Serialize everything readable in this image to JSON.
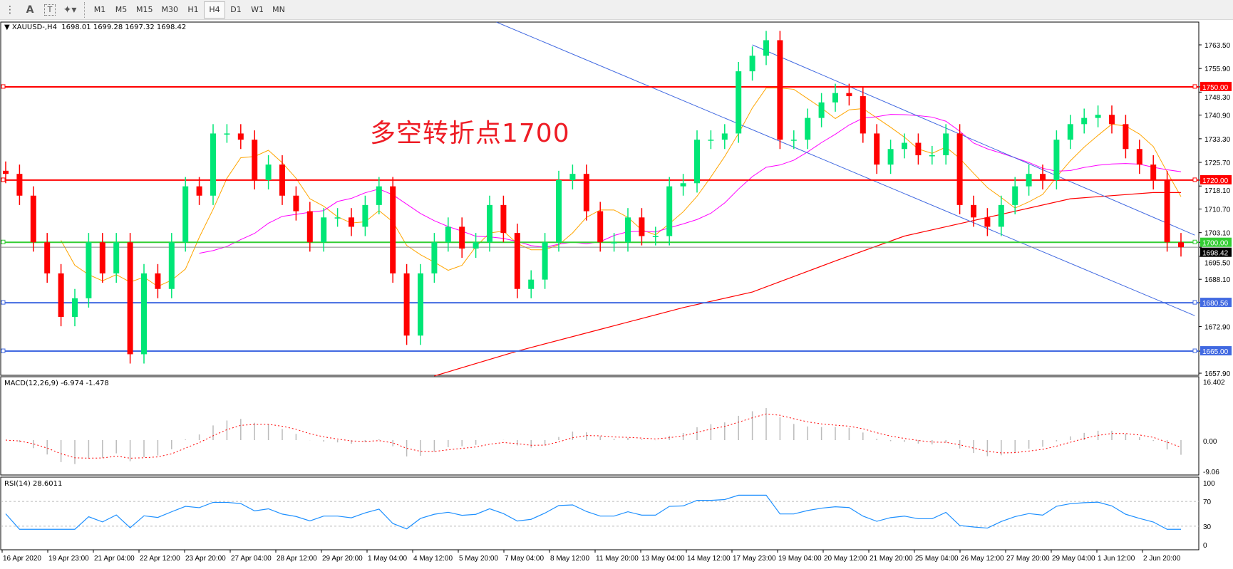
{
  "toolbar": {
    "icons": [
      "grid-f-icon",
      "text-a-icon",
      "text-label-icon",
      "shapes-icon"
    ],
    "timeframes": [
      "M1",
      "M5",
      "M15",
      "M30",
      "H1",
      "H4",
      "D1",
      "W1",
      "MN"
    ],
    "active": "H4"
  },
  "legend": {
    "symbol": "XAUUSD-,H4",
    "ohlc": "1698.01 1699.28 1697.32 1698.42"
  },
  "annotation": "多空转折点1700",
  "chart_data": {
    "type": "candlestick",
    "closes": [
      1722,
      1715,
      1700,
      1690,
      1676,
      1682,
      1700,
      1690,
      1700,
      1664,
      1690,
      1685,
      1700,
      1718,
      1715,
      1735,
      1735,
      1733,
      1720,
      1725,
      1715,
      1710,
      1700,
      1708,
      1708,
      1705,
      1712,
      1718,
      1690,
      1670,
      1690,
      1700,
      1705,
      1698,
      1700,
      1712,
      1703,
      1685,
      1688,
      1700,
      1720,
      1722,
      1710,
      1700,
      1700,
      1708,
      1702,
      1702,
      1718,
      1719,
      1733,
      1733,
      1735,
      1755,
      1760,
      1765,
      1733,
      1733,
      1740,
      1745,
      1748,
      1747,
      1735,
      1725,
      1730,
      1732,
      1728,
      1728,
      1735,
      1712,
      1708,
      1705,
      1712,
      1718,
      1722,
      1720,
      1733,
      1738,
      1740,
      1741,
      1738,
      1730,
      1725,
      1720,
      1700,
      1698.42
    ],
    "ylim": [
      1655,
      1770
    ],
    "price_ticks": [
      "1763.50",
      "1755.90",
      "1748.30",
      "1740.90",
      "1733.30",
      "1725.70",
      "1718.10",
      "1710.70",
      "1703.10",
      "1695.50",
      "1688.10",
      "1672.90",
      "1657.90"
    ],
    "current_price": "1698.42",
    "levels": [
      {
        "price": 1750,
        "label": "1750.00",
        "color": "#ff0000"
      },
      {
        "price": 1720,
        "label": "1720.00",
        "color": "#ff0000"
      },
      {
        "price": 1700,
        "label": "1700.00",
        "color": "#32cd32"
      },
      {
        "price": 1680.56,
        "label": "1680.56",
        "color": "#4169e1"
      },
      {
        "price": 1665,
        "label": "1665.00",
        "color": "#4169e1"
      }
    ],
    "trendlines": [
      {
        "points": [
          [
            35.5,
            1770.8
          ],
          [
            86,
            1676.4
          ]
        ],
        "color": "#4169e1"
      },
      {
        "points": [
          [
            54,
            1763.5
          ],
          [
            86,
            1702.3
          ]
        ],
        "color": "#4169e1"
      }
    ],
    "ma_slow": [
      [
        31,
        1657
      ],
      [
        37,
        1665
      ],
      [
        43,
        1672
      ],
      [
        49,
        1679
      ],
      [
        54,
        1684
      ],
      [
        60,
        1694
      ],
      [
        65,
        1702
      ],
      [
        71,
        1708
      ],
      [
        77,
        1714
      ],
      [
        83,
        1716
      ],
      [
        85,
        1716
      ]
    ],
    "colors": {
      "bull": "#00e676",
      "bear": "#ff0000",
      "ma_fast": "#ffa500",
      "ma_mid": "#ff00ff",
      "ma_slow": "#ff0000"
    },
    "x_labels": [
      "16 Apr 2020",
      "19 Apr 23:00",
      "21 Apr 04:00",
      "22 Apr 12:00",
      "23 Apr 20:00",
      "27 Apr 04:00",
      "28 Apr 12:00",
      "29 Apr 20:00",
      "1 May 04:00",
      "4 May 12:00",
      "5 May 20:00",
      "7 May 04:00",
      "8 May 12:00",
      "11 May 20:00",
      "13 May 04:00",
      "14 May 12:00",
      "17 May 23:00",
      "19 May 04:00",
      "20 May 12:00",
      "21 May 20:00",
      "25 May 04:00",
      "26 May 12:00",
      "27 May 20:00",
      "29 May 04:00",
      "1 Jun 12:00",
      "2 Jun 20:00"
    ]
  },
  "macd": {
    "label": "MACD(12,26,9) -6.974 -1.478",
    "ticks": [
      "16.402",
      "0.00",
      "-9.06"
    ]
  },
  "rsi": {
    "label": "RSI(14) 28.6011",
    "ticks": [
      "100",
      "70",
      "30",
      "0"
    ]
  }
}
